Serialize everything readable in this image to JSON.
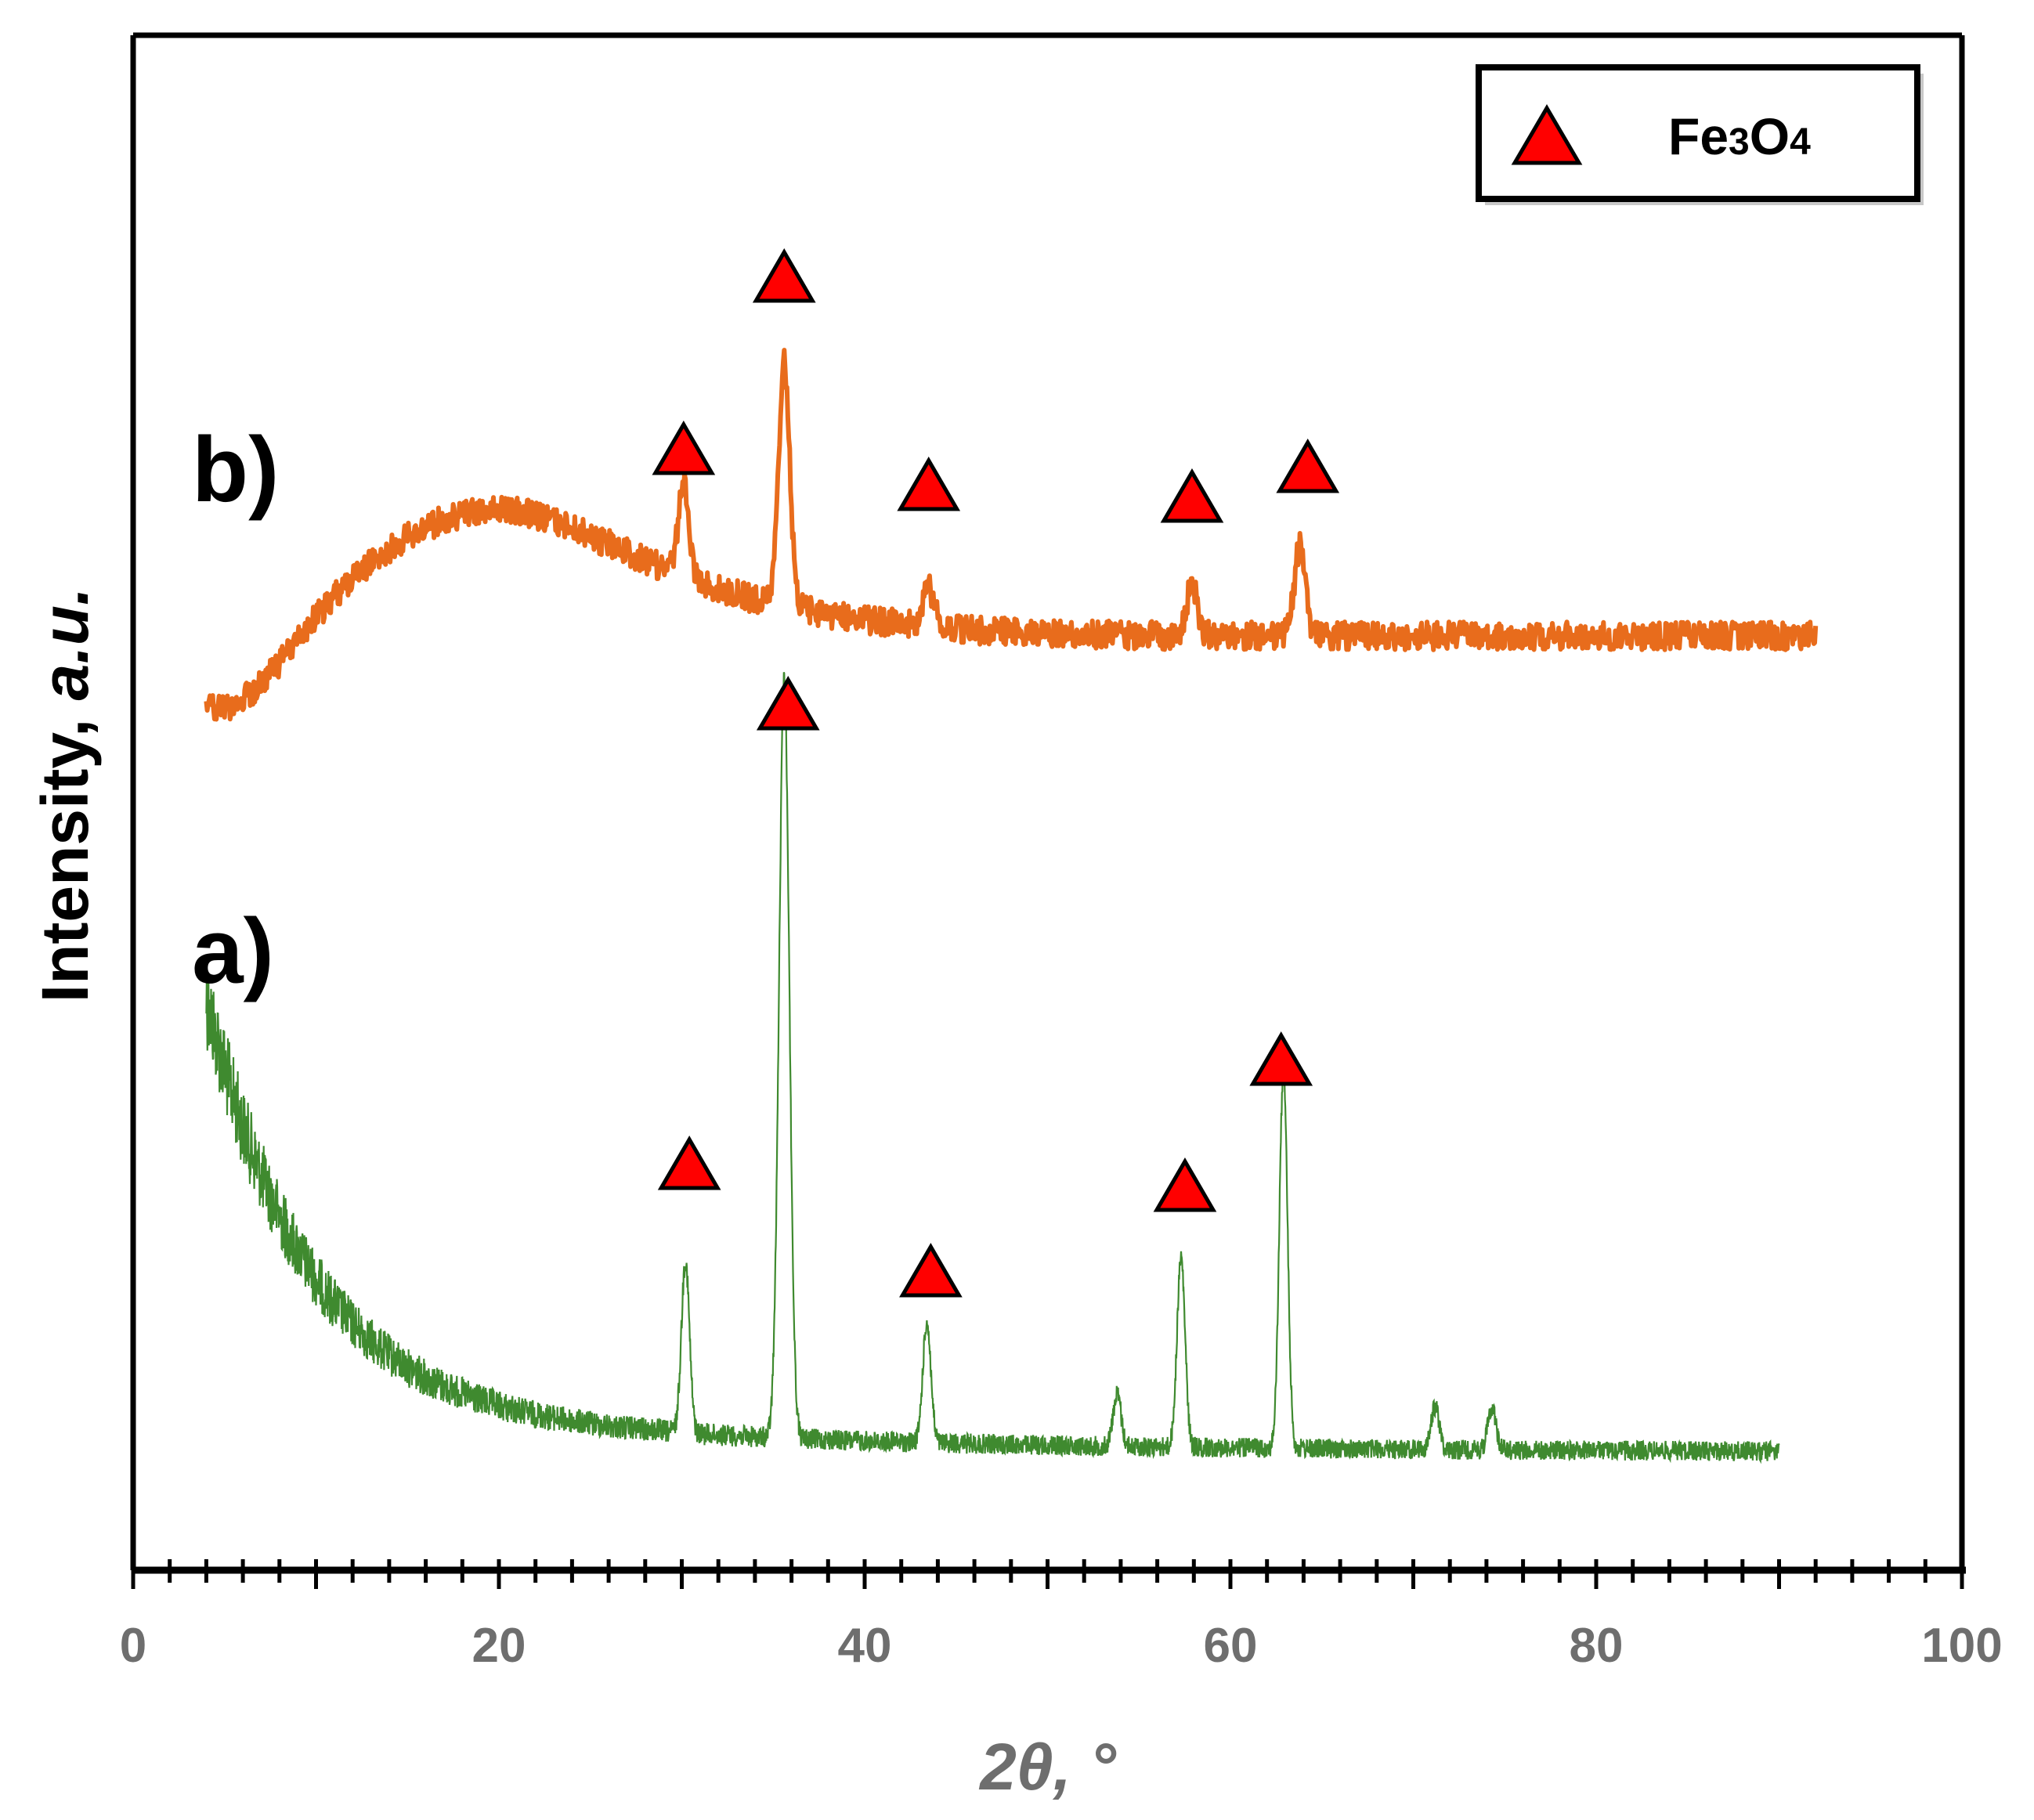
{
  "chart_data": {
    "type": "line",
    "title": "",
    "xlabel": "2θ, °",
    "ylabel_main": "Intensity, ",
    "ylabel_unit": "a.u.",
    "xlim": [
      0,
      100
    ],
    "xticks": [
      "0",
      "20",
      "40",
      "60",
      "80",
      "100"
    ],
    "x_tick_values": [
      0,
      20,
      40,
      60,
      80,
      100
    ],
    "y_ticks_shown": false,
    "legend": {
      "position": "top-right",
      "marker": "triangle",
      "marker_color": "#ff0000",
      "label_main": "Fe",
      "label_sub1": "3",
      "label_mid": "O",
      "label_sub2": "4"
    },
    "series": [
      {
        "name": "a)",
        "label": "a)",
        "color": "#3f8a2f",
        "x_range": [
          4,
          90
        ],
        "baseline_note": "decaying background from low angle",
        "peaks": [
          {
            "x": 30.2,
            "rel_height": 0.2
          },
          {
            "x": 35.6,
            "rel_height": 0.88
          },
          {
            "x": 43.4,
            "rel_height": 0.14
          },
          {
            "x": 53.8,
            "rel_height": 0.06
          },
          {
            "x": 57.3,
            "rel_height": 0.22
          },
          {
            "x": 62.9,
            "rel_height": 0.44
          },
          {
            "x": 71.2,
            "rel_height": 0.05
          },
          {
            "x": 74.3,
            "rel_height": 0.05
          }
        ],
        "marked_peaks": [
          30.2,
          35.6,
          43.4,
          57.3,
          62.9
        ]
      },
      {
        "name": "b)",
        "label": "b)",
        "color": "#e86c1c",
        "x_range": [
          4,
          92
        ],
        "baseline_note": "broad amorphous hump centered near 18",
        "peaks": [
          {
            "x": 30.1,
            "rel_height": 0.14
          },
          {
            "x": 35.6,
            "rel_height": 0.38
          },
          {
            "x": 43.5,
            "rel_height": 0.06
          },
          {
            "x": 57.9,
            "rel_height": 0.08
          },
          {
            "x": 63.8,
            "rel_height": 0.14
          }
        ],
        "marked_peaks": [
          30.1,
          35.6,
          43.5,
          57.9,
          63.8
        ]
      }
    ]
  }
}
